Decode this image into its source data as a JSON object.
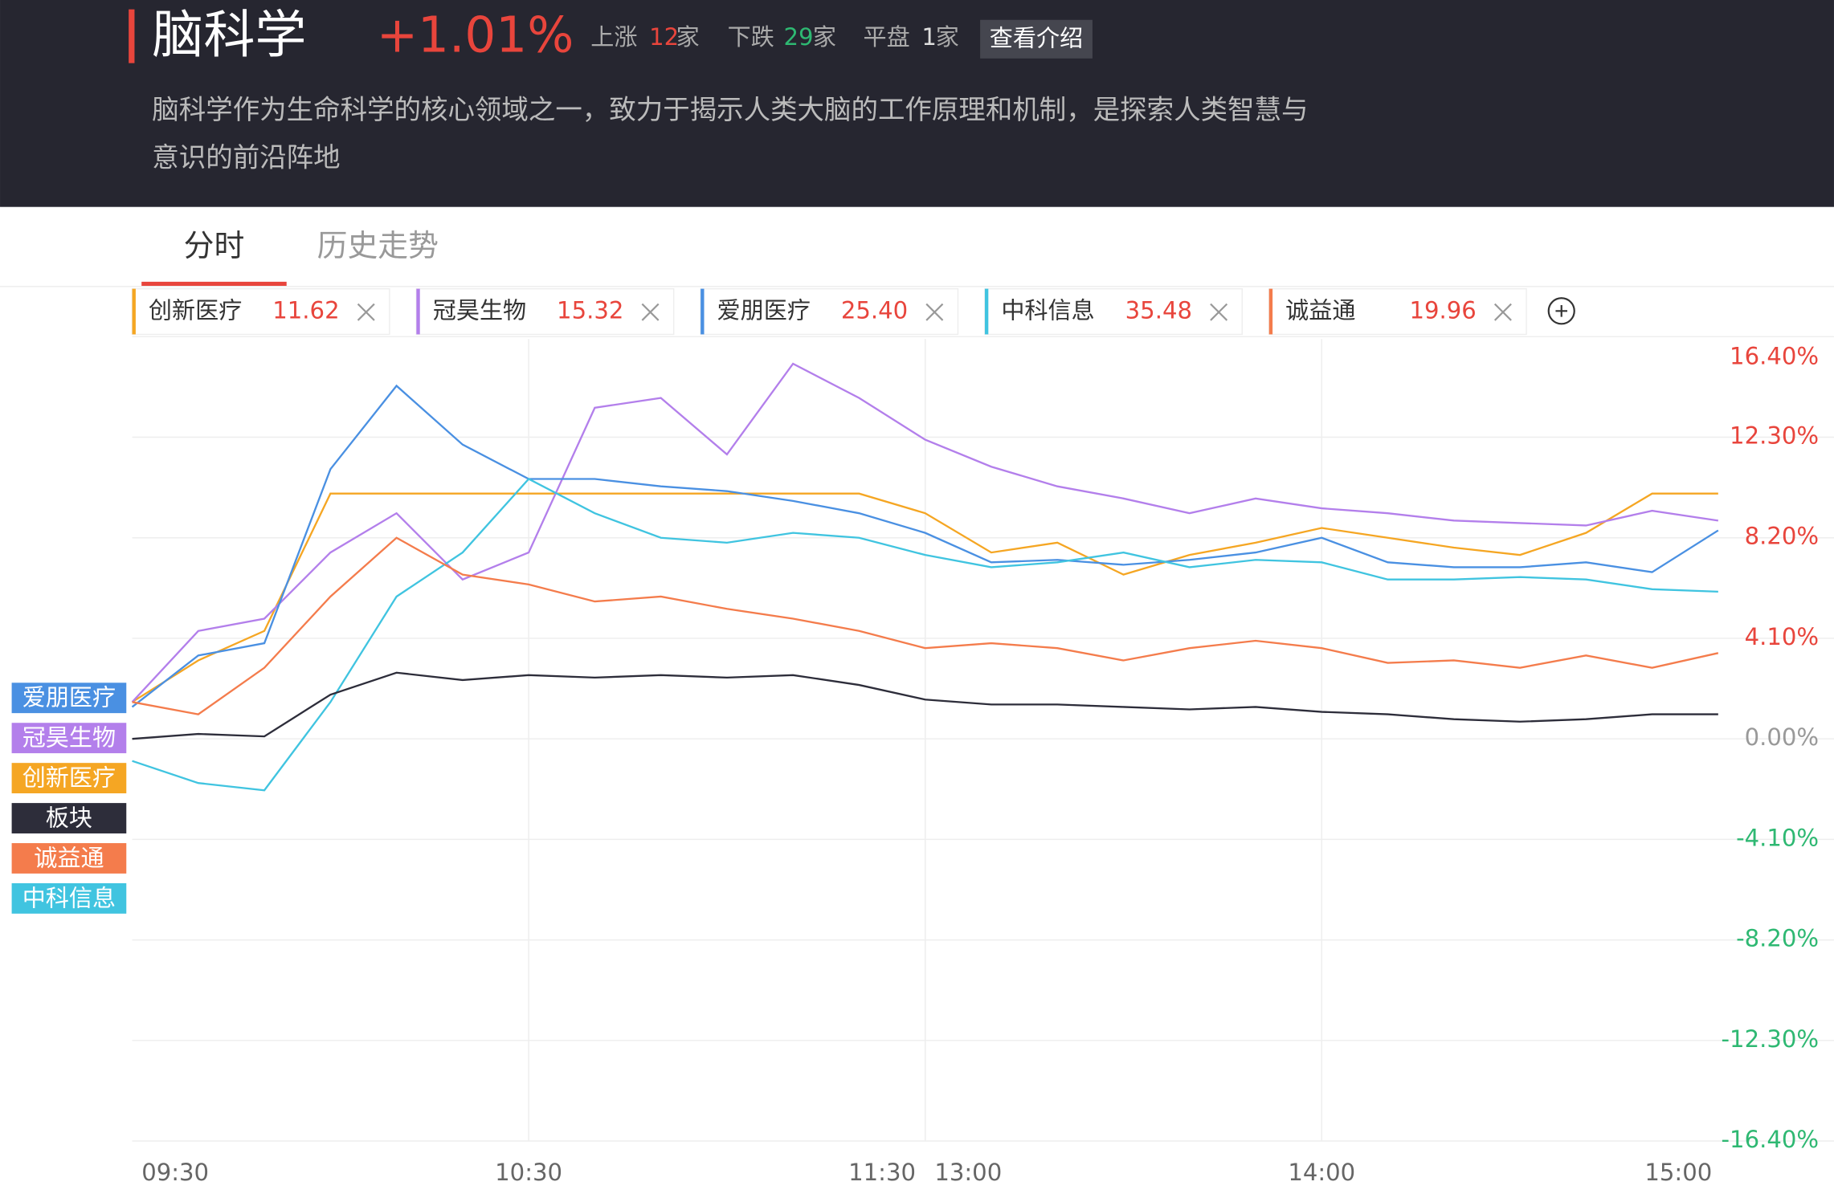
{
  "header": {
    "title": "脑科学",
    "change": "+1.01%",
    "up_label": "上涨",
    "up_count": 12,
    "down_label": "下跌",
    "down_count": 29,
    "flat_label": "平盘",
    "flat_count": 1,
    "unit": "家",
    "button": "查看介绍",
    "description": [
      "脑科学作为生命科学的核心领域之一，致力于揭示人类大脑的工作原理和机制，是探索人类智慧与",
      "意识的前沿阵地"
    ]
  },
  "tabs": [
    "分时",
    "历史走势"
  ],
  "chart_data": {
    "type": "line",
    "x": [
      "09:30",
      "09:40",
      "09:50",
      "10:00",
      "10:10",
      "10:20",
      "10:30",
      "10:40",
      "10:50",
      "11:00",
      "11:10",
      "11:20",
      "11:30",
      "13:10",
      "13:20",
      "13:30",
      "13:40",
      "13:50",
      "14:00",
      "14:10",
      "14:20",
      "14:30",
      "14:40",
      "14:50",
      "15:00"
    ],
    "xticks": [
      "09:30",
      "10:30",
      "11:30",
      "13:00",
      "14:00",
      "15:00"
    ],
    "ylim": [
      -16.4,
      16.4
    ],
    "yticks": [
      {
        "value": 16.4,
        "label": "16.40%"
      },
      {
        "value": 12.3,
        "label": "12.30%"
      },
      {
        "value": 8.2,
        "label": "8.20%"
      },
      {
        "value": 4.1,
        "label": "4.10%"
      },
      {
        "value": 0,
        "label": "0.00%"
      },
      {
        "value": -4.1,
        "label": "-4.10%"
      },
      {
        "value": -8.2,
        "label": "-8.20%"
      },
      {
        "value": -12.3,
        "label": "-12.30%"
      },
      {
        "value": -16.4,
        "label": "-16.40%"
      }
    ],
    "grid": true,
    "series": [
      {
        "name": "创新医疗",
        "price": "11.62",
        "color": "#f5a623",
        "values": [
          1.5,
          3.2,
          4.4,
          10.0,
          10.0,
          10.0,
          10.0,
          10.0,
          10.0,
          10.0,
          10.0,
          10.0,
          9.2,
          7.6,
          8.0,
          6.7,
          7.5,
          8.0,
          8.6,
          8.2,
          7.8,
          7.5,
          8.4,
          10.0,
          10.0
        ]
      },
      {
        "name": "冠昊生物",
        "price": "15.32",
        "color": "#b37feb",
        "values": [
          1.5,
          4.4,
          4.9,
          7.6,
          9.2,
          6.5,
          7.6,
          13.5,
          13.9,
          11.6,
          15.3,
          13.9,
          12.2,
          11.1,
          10.3,
          9.8,
          9.2,
          9.8,
          9.4,
          9.2,
          8.9,
          8.8,
          8.7,
          9.3,
          8.9
        ]
      },
      {
        "name": "爱朋医疗",
        "price": "25.40",
        "color": "#4a90e2",
        "values": [
          1.3,
          3.4,
          3.9,
          11.0,
          14.4,
          12.0,
          10.6,
          10.6,
          10.3,
          10.1,
          9.7,
          9.2,
          8.4,
          7.2,
          7.3,
          7.1,
          7.3,
          7.6,
          8.2,
          7.2,
          7.0,
          7.0,
          7.2,
          6.8,
          8.5
        ]
      },
      {
        "name": "中科信息",
        "price": "35.48",
        "color": "#40c4e0",
        "values": [
          -0.9,
          -1.8,
          -2.1,
          1.5,
          5.8,
          7.6,
          10.6,
          9.2,
          8.2,
          8.0,
          8.4,
          8.2,
          7.5,
          7.0,
          7.2,
          7.6,
          7.0,
          7.3,
          7.2,
          6.5,
          6.5,
          6.6,
          6.5,
          6.1,
          6.0
        ]
      },
      {
        "name": "诚益通",
        "price": "19.96",
        "color": "#f47c4c",
        "values": [
          1.5,
          1.0,
          2.9,
          5.8,
          8.2,
          6.7,
          6.3,
          5.6,
          5.8,
          5.3,
          4.9,
          4.4,
          3.7,
          3.9,
          3.7,
          3.2,
          3.7,
          4.0,
          3.7,
          3.1,
          3.2,
          2.9,
          3.4,
          2.9,
          3.5
        ]
      },
      {
        "name": "板块",
        "color": "#2d2d3a",
        "values": [
          0,
          0.2,
          0.1,
          1.8,
          2.7,
          2.4,
          2.6,
          2.5,
          2.6,
          2.5,
          2.6,
          2.2,
          1.6,
          1.4,
          1.4,
          1.3,
          1.2,
          1.3,
          1.1,
          1.0,
          0.8,
          0.7,
          0.8,
          1.0,
          1.0
        ]
      }
    ]
  }
}
